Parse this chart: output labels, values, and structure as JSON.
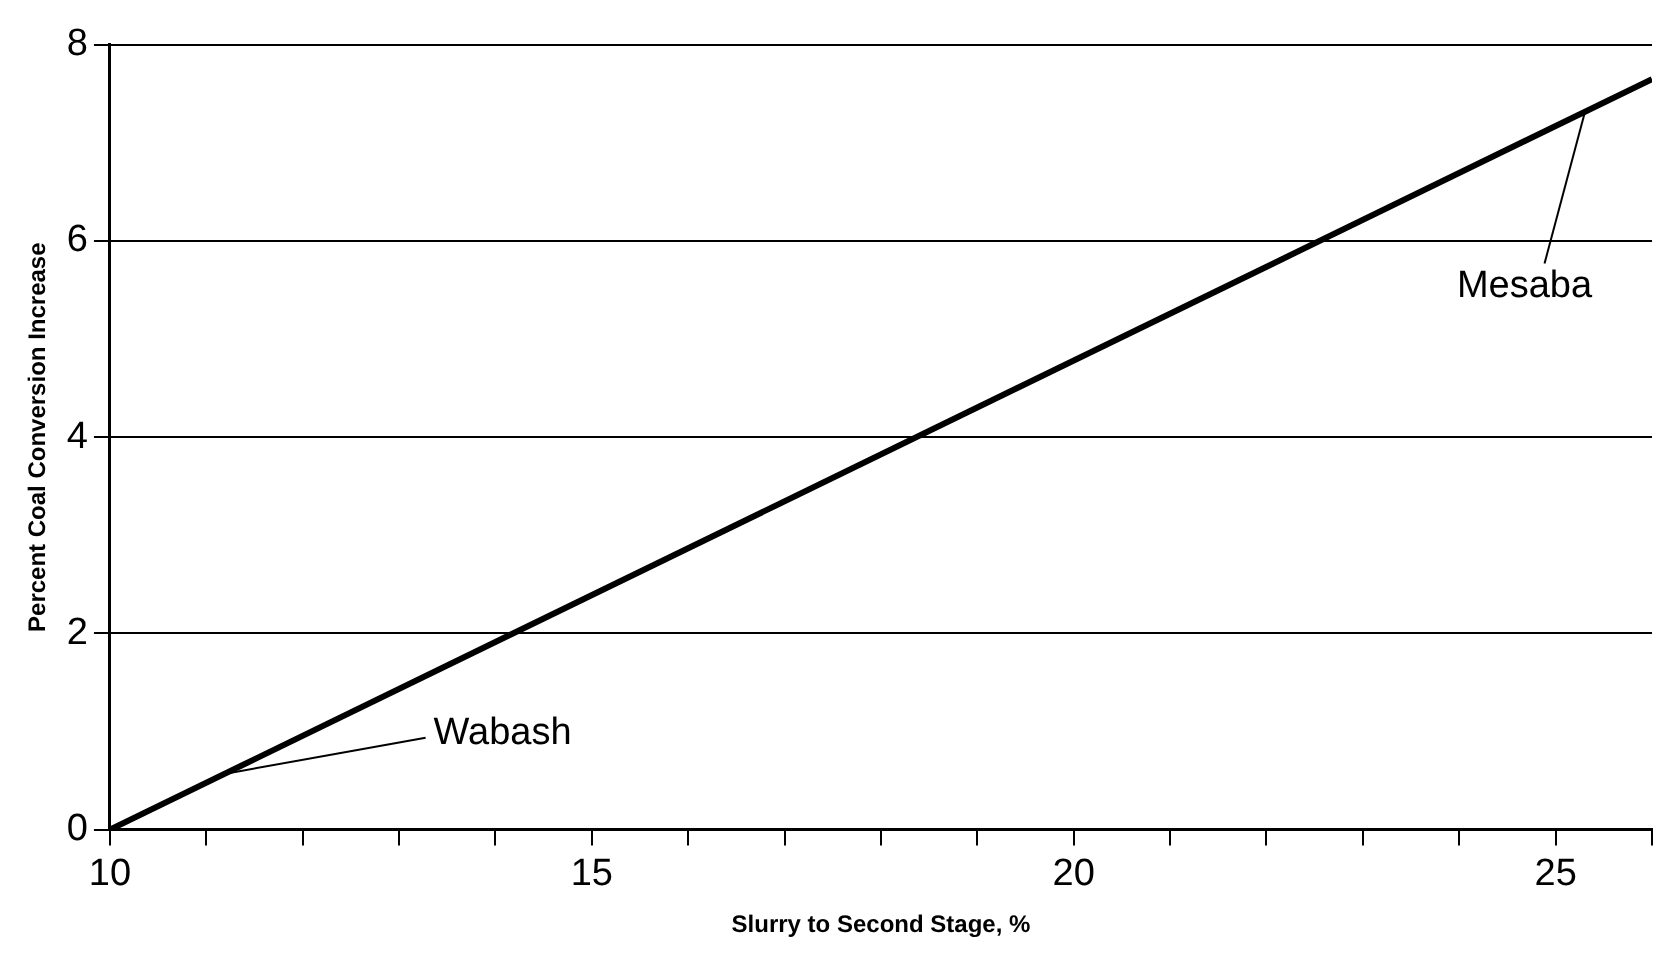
{
  "chart_data": {
    "type": "line",
    "xlabel": "Slurry to Second Stage, %",
    "ylabel": "Percent Coal Conversion Increase",
    "x": [
      10,
      26
    ],
    "series": [
      {
        "color": "#000000",
        "values": [
          0,
          7.65
        ]
      }
    ],
    "xlim": [
      10,
      26
    ],
    "xticks": [
      10,
      {
        "value": 11,
        "label": null
      },
      {
        "value": 12,
        "label": null
      },
      {
        "value": 13,
        "label": null
      },
      {
        "value": 14,
        "label": null
      },
      15,
      {
        "value": 16,
        "label": null
      },
      {
        "value": 17,
        "label": null
      },
      {
        "value": 18,
        "label": null
      },
      {
        "value": 19,
        "label": null
      },
      20,
      {
        "value": 21,
        "label": null
      },
      {
        "value": 22,
        "label": null
      },
      {
        "value": 23,
        "label": null
      },
      {
        "value": 24,
        "label": null
      },
      25,
      {
        "value": 26,
        "label": null
      }
    ],
    "ylim": [
      0,
      8
    ],
    "yticks": [
      0,
      2,
      4,
      6,
      8
    ],
    "grid": "y",
    "legend": false,
    "marker": "none",
    "line_style": "solid",
    "annotations": [
      {
        "text": "Wabash",
        "x": 11.2,
        "y": 0.57
      },
      {
        "text": "Mesaba",
        "x": 25.3,
        "y": 7.3
      }
    ]
  }
}
